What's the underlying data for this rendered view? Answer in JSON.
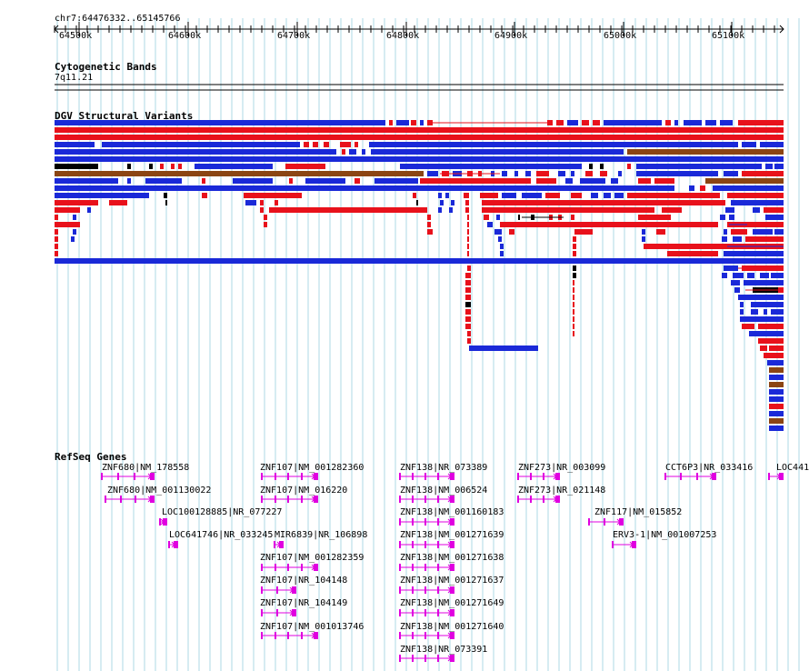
{
  "region": {
    "label": "chr7:64476332..65145766",
    "ticks": [
      "64500k",
      "64600k",
      "64700k",
      "64800k",
      "64900k",
      "65000k",
      "65100k"
    ]
  },
  "tracks": {
    "cytobands": {
      "title": "Cytogenetic Bands",
      "band": "7q11.21"
    },
    "dgv": {
      "title": "DGV Structural Variants"
    },
    "refseq": {
      "title": "RefSeq Genes"
    }
  },
  "genes": [
    "ZNF680|NM_178558",
    "ZNF680|NM_001130022",
    "LOC100128885|NR_077227",
    "LOC641746|NR_033245",
    "MIR6839|NR_106898",
    "ZNF107|NM_001282360",
    "ZNF107|NM_016220",
    "ZNF107|NM_001282359",
    "ZNF107|NR_104148",
    "ZNF107|NR_104149",
    "ZNF107|NM_001013746",
    "ZNF138|NR_073389",
    "ZNF138|NM_006524",
    "ZNF138|NM_001160183",
    "ZNF138|NM_001271639",
    "ZNF138|NM_001271638",
    "ZNF138|NM_001271637",
    "ZNF138|NM_001271649",
    "ZNF138|NM_001271640",
    "ZNF138|NR_073391",
    "ZNF273|NR_003099",
    "ZNF273|NR_021148",
    "ZNF117|NM_015852",
    "ERV3-1|NM_001007253",
    "CCT6P3|NR_033416",
    "LOC441"
  ],
  "colors": {
    "gain": "#e8111b",
    "loss": "#1a29d8",
    "both": "#8b4513",
    "other": "#000000",
    "gene": "#e000e0",
    "gridline": "#add8e6"
  }
}
